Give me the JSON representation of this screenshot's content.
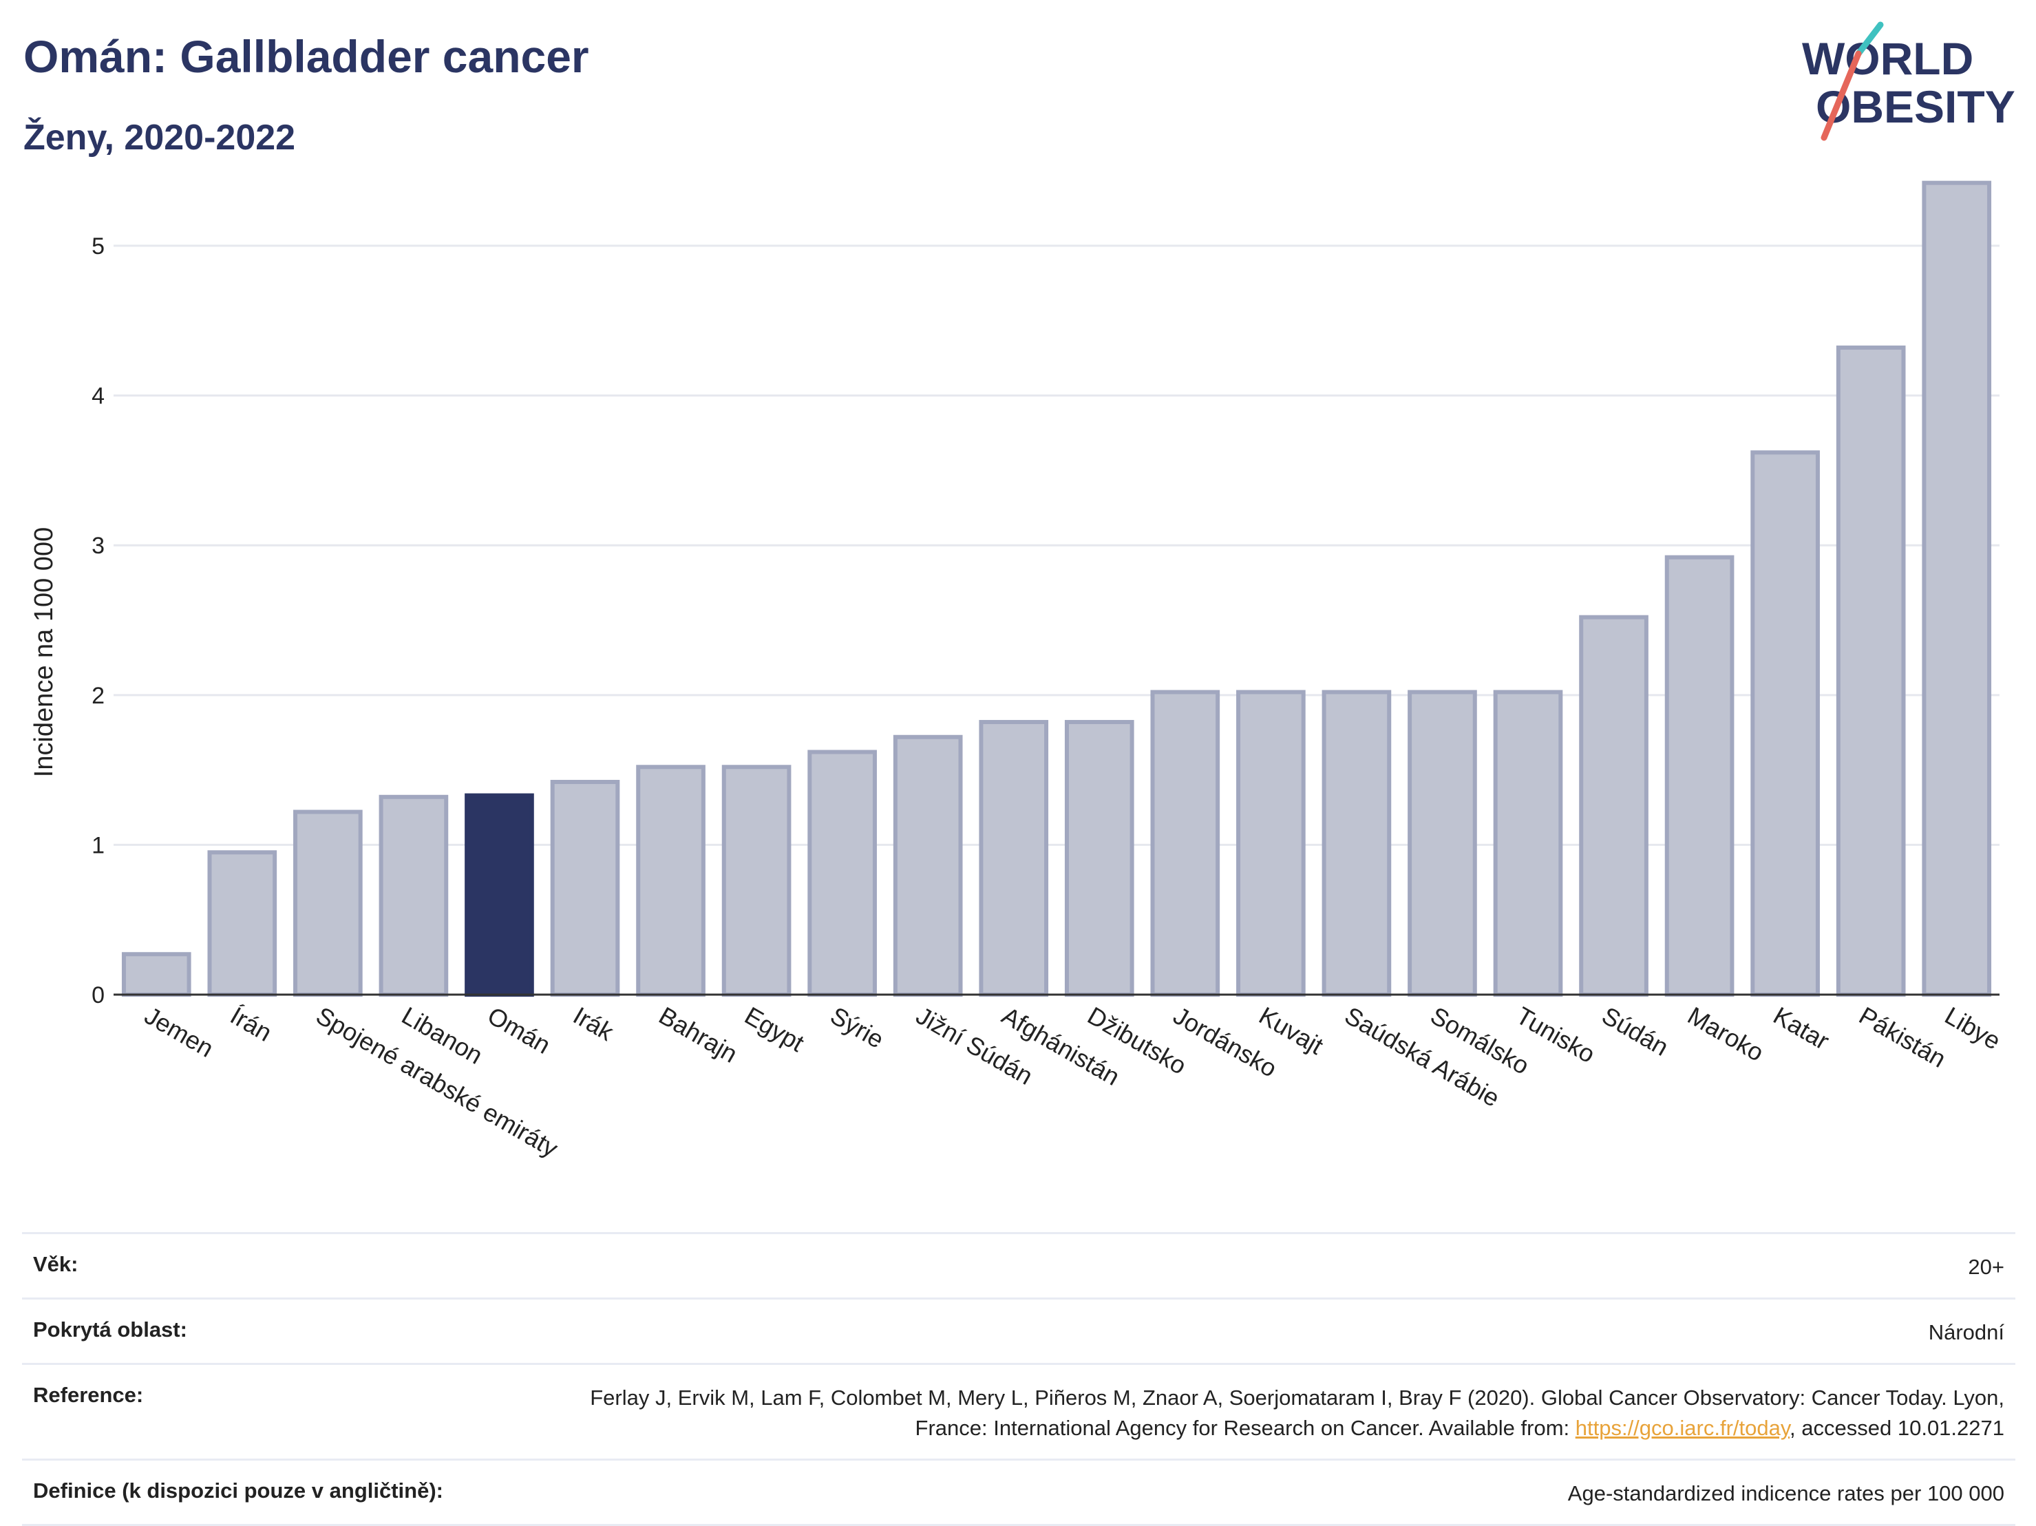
{
  "header": {
    "title": "Omán: Gallbladder cancer",
    "subtitle": "Ženy, 2020-2022"
  },
  "logo": {
    "line1": "WORLD",
    "line2": "OBESITY",
    "accent_colors": [
      "#3fc1c0",
      "#e5665a"
    ]
  },
  "colors": {
    "bar": "#bfc3d1",
    "bar_border": "#a1a7bf",
    "highlight": "#2b3563",
    "grid": "#e6e8ee",
    "axis": "#333333"
  },
  "chart_data": {
    "type": "bar",
    "ylabel": "Incidence na 100 000",
    "xlabel": "",
    "ylim": [
      0,
      5.6
    ],
    "yticks": [
      0,
      1,
      2,
      3,
      4,
      5
    ],
    "grid": true,
    "highlight_category": "Omán",
    "categories": [
      "Jemen",
      "Írán",
      "Spojené arabské emiráty",
      "Libanon",
      "Omán",
      "Irák",
      "Bahrajn",
      "Egypt",
      "Sýrie",
      "Jižní Súdán",
      "Afghánistán",
      "Džibutsko",
      "Jordánsko",
      "Kuvajt",
      "Saúdská Arábie",
      "Somálsko",
      "Tunisko",
      "Súdán",
      "Maroko",
      "Katar",
      "Pákistán",
      "Libye"
    ],
    "values": [
      0.27,
      0.95,
      1.22,
      1.32,
      1.33,
      1.42,
      1.52,
      1.52,
      1.62,
      1.72,
      1.82,
      1.82,
      2.02,
      2.02,
      2.02,
      2.02,
      2.02,
      2.52,
      2.92,
      3.62,
      4.32,
      5.42
    ]
  },
  "meta": {
    "age_label": "Věk:",
    "age_value": "20+",
    "area_label": "Pokrytá oblast:",
    "area_value": "Národní",
    "ref_label": "Reference:",
    "ref_text_1": "Ferlay J, Ervik M, Lam F, Colombet M, Mery L, Piñeros M, Znaor A, Soerjomataram I, Bray F (2020). Global Cancer Observatory: Cancer Today. Lyon, France: International Agency for Research on Cancer. Available from: ",
    "ref_link": "https://gco.iarc.fr/today",
    "ref_text_2": ", accessed 10.01.2271",
    "def_label": "Definice (k dispozici pouze v angličtině):",
    "def_value": "Age-standardized indicence rates per 100 000"
  }
}
